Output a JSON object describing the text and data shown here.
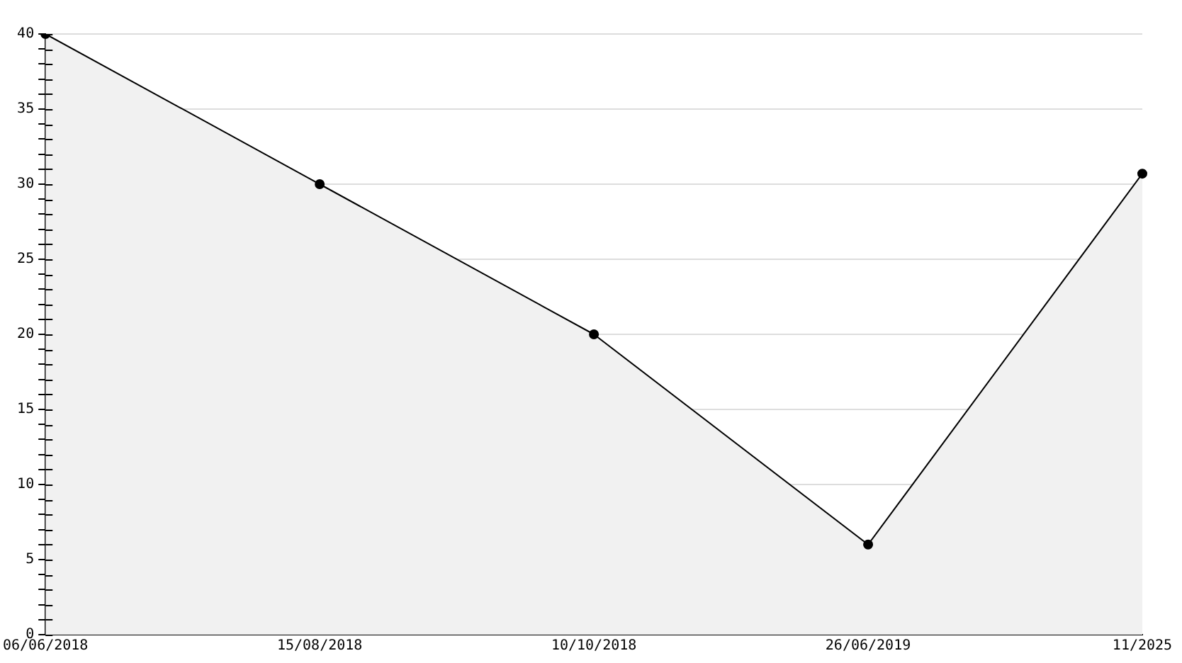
{
  "chart_data": {
    "type": "area",
    "categories": [
      "06/06/2018",
      "15/08/2018",
      "10/10/2018",
      "26/06/2019",
      "11/2025"
    ],
    "series": [
      {
        "color": "#000000",
        "values": [
          40,
          30,
          20,
          6,
          30.7
        ]
      }
    ],
    "ylim": [
      0,
      40
    ],
    "yticks": [
      0,
      {
        "value": 1,
        "label": null
      },
      {
        "value": 2,
        "label": null
      },
      {
        "value": 3,
        "label": null
      },
      {
        "value": 4,
        "label": null
      },
      5,
      {
        "value": 6,
        "label": null
      },
      {
        "value": 7,
        "label": null
      },
      {
        "value": 8,
        "label": null
      },
      {
        "value": 9,
        "label": null
      },
      10,
      {
        "value": 11,
        "label": null
      },
      {
        "value": 12,
        "label": null
      },
      {
        "value": 13,
        "label": null
      },
      {
        "value": 14,
        "label": null
      },
      15,
      {
        "value": 16,
        "label": null
      },
      {
        "value": 17,
        "label": null
      },
      {
        "value": 18,
        "label": null
      },
      {
        "value": 19,
        "label": null
      },
      20,
      {
        "value": 21,
        "label": null
      },
      {
        "value": 22,
        "label": null
      },
      {
        "value": 23,
        "label": null
      },
      {
        "value": 24,
        "label": null
      },
      25,
      {
        "value": 26,
        "label": null
      },
      {
        "value": 27,
        "label": null
      },
      {
        "value": 28,
        "label": null
      },
      {
        "value": 29,
        "label": null
      },
      30,
      {
        "value": 31,
        "label": null
      },
      {
        "value": 32,
        "label": null
      },
      {
        "value": 33,
        "label": null
      },
      {
        "value": 34,
        "label": null
      },
      35,
      {
        "value": 36,
        "label": null
      },
      {
        "value": 37,
        "label": null
      },
      {
        "value": 38,
        "label": null
      },
      {
        "value": 39,
        "label": null
      },
      40
    ],
    "grid": "y",
    "legend": false,
    "marker": "circle",
    "line_style": "solid"
  }
}
